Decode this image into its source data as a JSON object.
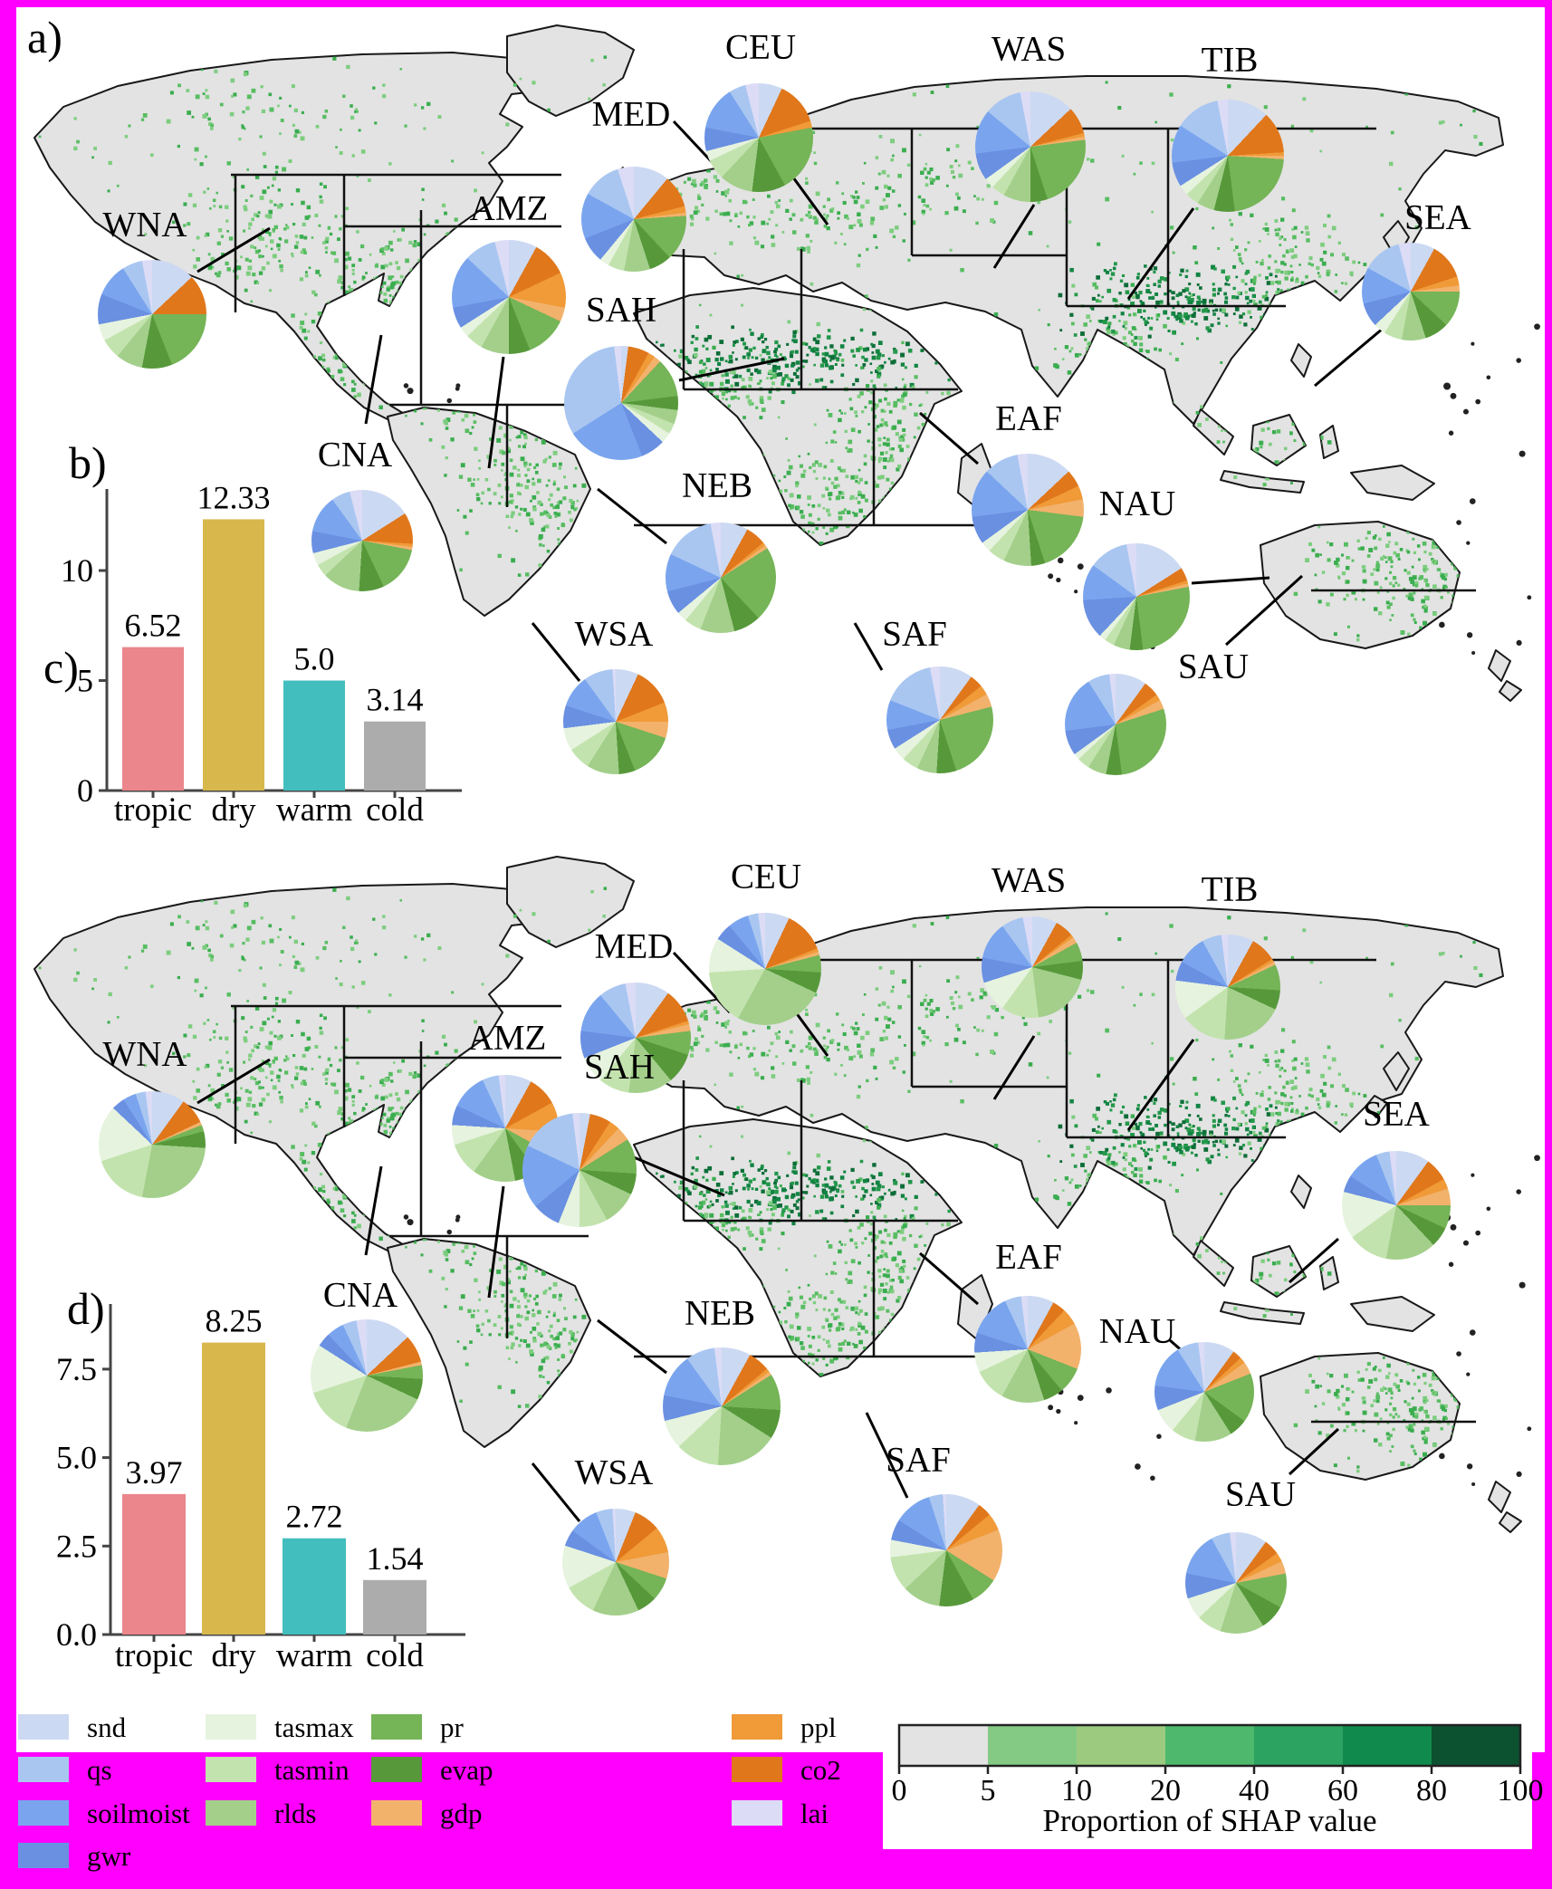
{
  "panels": {
    "a": "a)",
    "b": "b)",
    "c": "c)",
    "d": "d)"
  },
  "palette": {
    "snd": "#ccd9f2",
    "qs": "#a9c6f1",
    "soilmoist": "#7aa5ee",
    "gwr": "#6a90e2",
    "tasmax": "#e6f3de",
    "tasmin": "#c3e3ae",
    "rlds": "#a3cf8b",
    "pr": "#75b457",
    "evap": "#57993a",
    "gdp": "#f2b26c",
    "ppl": "#f09a38",
    "co2": "#e0771b",
    "lai": "#dcdcf6"
  },
  "regions": [
    "WNA",
    "CNA",
    "AMZ",
    "MED",
    "CEU",
    "WAS",
    "TIB",
    "SEA",
    "SAH",
    "NEB",
    "EAF",
    "NAU",
    "WSA",
    "SAF",
    "SAU"
  ],
  "legend": {
    "columns": [
      [
        {
          "id": "snd",
          "label": "snd"
        },
        {
          "id": "qs",
          "label": "qs"
        },
        {
          "id": "soilmoist",
          "label": "soilmoist"
        },
        {
          "id": "gwr",
          "label": "gwr"
        }
      ],
      [
        {
          "id": "tasmax",
          "label": "tasmax"
        },
        {
          "id": "tasmin",
          "label": "tasmin"
        },
        {
          "id": "rlds",
          "label": "rlds"
        }
      ],
      [
        {
          "id": "pr",
          "label": "pr"
        },
        {
          "id": "evap",
          "label": "evap"
        },
        {
          "id": "gdp",
          "label": "gdp"
        }
      ],
      [
        {
          "id": "ppl",
          "label": "ppl"
        },
        {
          "id": "co2",
          "label": "co2"
        },
        {
          "id": "lai",
          "label": "lai"
        }
      ]
    ]
  },
  "colorbar": {
    "title": "Proportion of SHAP value",
    "tick_labels": [
      "0",
      "5",
      "10",
      "20",
      "40",
      "60",
      "80",
      "100"
    ],
    "segment_colors": [
      "#e3e3e3",
      "#84ca84",
      "#9ccb80",
      "#4eb96d",
      "#2da361",
      "#118a4d",
      "#0c5130"
    ]
  },
  "chart_data": [
    {
      "type": "pie",
      "panel": "a",
      "slice_order": [
        "snd",
        "co2",
        "ppl",
        "gdp",
        "pr",
        "evap",
        "rlds",
        "tasmin",
        "tasmax",
        "gwr",
        "soilmoist",
        "qs",
        "lai"
      ],
      "units": "percent of SHAP value",
      "regions": {
        "WNA": [
          13,
          12,
          0,
          0,
          19,
          9,
          8,
          6,
          5,
          9,
          10,
          6,
          3
        ],
        "CNA": [
          16,
          10,
          1,
          1,
          15,
          8,
          12,
          4,
          4,
          7,
          12,
          6,
          4
        ],
        "AMZ": [
          8,
          10,
          10,
          4,
          12,
          6,
          8,
          5,
          3,
          6,
          15,
          9,
          4
        ],
        "MED": [
          11,
          10,
          2,
          1,
          14,
          7,
          8,
          5,
          3,
          8,
          14,
          12,
          5
        ],
        "CEU": [
          7,
          13,
          2,
          0,
          20,
          10,
          10,
          6,
          3,
          7,
          13,
          5,
          4
        ],
        "WAS": [
          13,
          8,
          1,
          1,
          22,
          5,
          8,
          4,
          3,
          8,
          13,
          11,
          3
        ],
        "TIB": [
          12,
          12,
          1,
          1,
          22,
          6,
          5,
          4,
          3,
          7,
          11,
          13,
          3
        ],
        "SEA": [
          8,
          12,
          3,
          2,
          12,
          8,
          8,
          6,
          4,
          8,
          12,
          13,
          4
        ],
        "SAH": [
          2,
          6,
          2,
          2,
          11,
          4,
          4,
          3,
          3,
          7,
          22,
          32,
          2
        ],
        "NEB": [
          8,
          6,
          1,
          1,
          22,
          8,
          10,
          5,
          3,
          7,
          11,
          15,
          3
        ],
        "EAF": [
          13,
          5,
          4,
          5,
          18,
          4,
          8,
          5,
          3,
          8,
          14,
          10,
          3
        ],
        "NAU": [
          16,
          4,
          1,
          1,
          26,
          4,
          5,
          3,
          2,
          12,
          11,
          12,
          3
        ],
        "WSA": [
          7,
          12,
          6,
          5,
          14,
          5,
          10,
          7,
          7,
          7,
          10,
          9,
          1
        ],
        "SAF": [
          10,
          4,
          3,
          4,
          24,
          6,
          6,
          5,
          4,
          6,
          9,
          16,
          3
        ],
        "SAU": [
          10,
          5,
          2,
          3,
          28,
          5,
          6,
          4,
          2,
          8,
          18,
          7,
          2
        ]
      }
    },
    {
      "type": "pie",
      "panel": "c",
      "slice_order": [
        "snd",
        "co2",
        "ppl",
        "gdp",
        "pr",
        "evap",
        "rlds",
        "tasmin",
        "tasmax",
        "gwr",
        "soilmoist",
        "qs",
        "lai"
      ],
      "units": "percent of SHAP value",
      "regions": {
        "WNA": [
          10,
          8,
          0,
          1,
          2,
          5,
          27,
          17,
          17,
          4,
          4,
          3,
          2
        ],
        "CNA": [
          13,
          8,
          0,
          1,
          4,
          6,
          24,
          14,
          14,
          4,
          5,
          4,
          3
        ],
        "AMZ": [
          8,
          9,
          9,
          7,
          7,
          7,
          13,
          10,
          6,
          6,
          11,
          5,
          2
        ],
        "MED": [
          10,
          10,
          1,
          2,
          7,
          9,
          13,
          9,
          8,
          8,
          12,
          8,
          3
        ],
        "CEU": [
          7,
          12,
          1,
          1,
          5,
          6,
          26,
          16,
          10,
          5,
          6,
          3,
          2
        ],
        "WAS": [
          8,
          6,
          1,
          2,
          6,
          6,
          19,
          12,
          10,
          8,
          12,
          7,
          3
        ],
        "TIB": [
          8,
          8,
          1,
          1,
          8,
          6,
          19,
          14,
          12,
          6,
          9,
          6,
          2
        ],
        "SEA": [
          10,
          7,
          3,
          5,
          7,
          6,
          15,
          12,
          14,
          5,
          10,
          4,
          2
        ],
        "SAH": [
          3,
          6,
          3,
          4,
          10,
          6,
          10,
          8,
          6,
          8,
          18,
          16,
          2
        ],
        "NEB": [
          8,
          6,
          1,
          1,
          10,
          8,
          17,
          12,
          8,
          7,
          12,
          8,
          2
        ],
        "EAF": [
          8,
          4,
          5,
          14,
          8,
          6,
          13,
          10,
          6,
          6,
          13,
          5,
          2
        ],
        "NAU": [
          10,
          3,
          2,
          4,
          16,
          6,
          12,
          8,
          8,
          8,
          14,
          7,
          2
        ],
        "WSA": [
          6,
          8,
          8,
          8,
          7,
          6,
          14,
          10,
          13,
          5,
          9,
          5,
          1
        ],
        "SAF": [
          10,
          4,
          5,
          15,
          8,
          10,
          11,
          10,
          5,
          6,
          11,
          4,
          1
        ],
        "SAU": [
          10,
          5,
          3,
          4,
          11,
          8,
          14,
          8,
          7,
          8,
          14,
          6,
          2
        ]
      }
    },
    {
      "type": "bar",
      "panel": "b",
      "categories": [
        "tropic",
        "dry",
        "warm",
        "cold"
      ],
      "values": [
        6.52,
        12.33,
        5.0,
        3.14
      ],
      "value_labels": [
        "6.52",
        "12.33",
        "5.0",
        "3.14"
      ],
      "ytick_values": [
        0,
        5,
        10
      ],
      "ytick_labels": [
        "0",
        "5",
        "10"
      ],
      "ylim": [
        0,
        13.5
      ],
      "colors": [
        "#ea868c",
        "#d8b84d",
        "#42bebe",
        "#acacac"
      ]
    },
    {
      "type": "bar",
      "panel": "d",
      "categories": [
        "tropic",
        "dry",
        "warm",
        "cold"
      ],
      "values": [
        3.97,
        8.25,
        2.72,
        1.54
      ],
      "value_labels": [
        "3.97",
        "8.25",
        "2.72",
        "1.54"
      ],
      "ytick_values": [
        0,
        2.5,
        5,
        7.5
      ],
      "ytick_labels": [
        "0.0",
        "2.5",
        "5.0",
        "7.5"
      ],
      "ylim": [
        0,
        9.2
      ],
      "colors": [
        "#ea868c",
        "#d8b84d",
        "#42bebe",
        "#acacac"
      ]
    }
  ]
}
